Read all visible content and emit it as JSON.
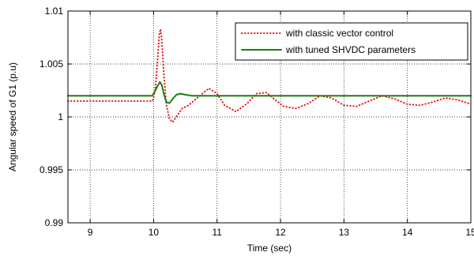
{
  "chart_data": {
    "type": "line",
    "title": "",
    "xlabel": "Time (sec)",
    "ylabel": "Angular speed of G1 (p.u)",
    "xlim": [
      8.65,
      15
    ],
    "ylim": [
      0.99,
      1.01
    ],
    "x_ticks": [
      "9",
      "10",
      "11",
      "12",
      "13",
      "14",
      "15"
    ],
    "y_ticks": [
      "0.99",
      "0.995",
      "1",
      "1.005",
      "1.01"
    ],
    "grid": true,
    "legend_position": "top-right",
    "series": [
      {
        "name": "with classic vector control",
        "color": "#e8161a",
        "style": "dotted",
        "x": [
          8.65,
          9.0,
          9.5,
          9.98,
          10.0,
          10.03,
          10.06,
          10.09,
          10.11,
          10.13,
          10.16,
          10.2,
          10.25,
          10.3,
          10.38,
          10.45,
          10.55,
          10.65,
          10.75,
          10.87,
          11.0,
          11.12,
          11.3,
          11.48,
          11.62,
          11.78,
          11.9,
          12.05,
          12.25,
          12.45,
          12.62,
          12.8,
          13.0,
          13.2,
          13.4,
          13.6,
          13.8,
          14.0,
          14.2,
          14.4,
          14.6,
          14.8,
          15.0
        ],
        "y": [
          1.0015,
          1.0015,
          1.0015,
          1.0015,
          1.0018,
          1.0028,
          1.0052,
          1.0078,
          1.0083,
          1.0072,
          1.0042,
          1.0012,
          0.9998,
          0.9995,
          1.0002,
          1.0008,
          1.0011,
          1.0016,
          1.0021,
          1.0027,
          1.0022,
          1.0011,
          1.0005,
          1.0013,
          1.0022,
          1.0023,
          1.0017,
          1.001,
          1.0008,
          1.0013,
          1.002,
          1.0018,
          1.0011,
          1.001,
          1.0015,
          1.002,
          1.0017,
          1.0012,
          1.0011,
          1.0014,
          1.0018,
          1.0016,
          1.0012
        ]
      },
      {
        "name": "with tuned SHVDC parameters",
        "color": "#1a7f12",
        "style": "solid",
        "x": [
          8.65,
          9.0,
          9.5,
          9.98,
          10.02,
          10.06,
          10.1,
          10.13,
          10.16,
          10.2,
          10.25,
          10.3,
          10.36,
          10.42,
          10.5,
          10.6,
          10.7,
          10.85,
          11.0,
          11.3,
          11.6,
          12.0,
          12.5,
          13.0,
          14.0,
          15.0
        ],
        "y": [
          1.002,
          1.002,
          1.002,
          1.002,
          1.0024,
          1.0029,
          1.0033,
          1.003,
          1.0022,
          1.0014,
          1.0013,
          1.0017,
          1.0021,
          1.0022,
          1.0021,
          1.002,
          1.002,
          1.002,
          1.002,
          1.002,
          1.002,
          1.002,
          1.002,
          1.002,
          1.002,
          1.002
        ]
      }
    ]
  }
}
